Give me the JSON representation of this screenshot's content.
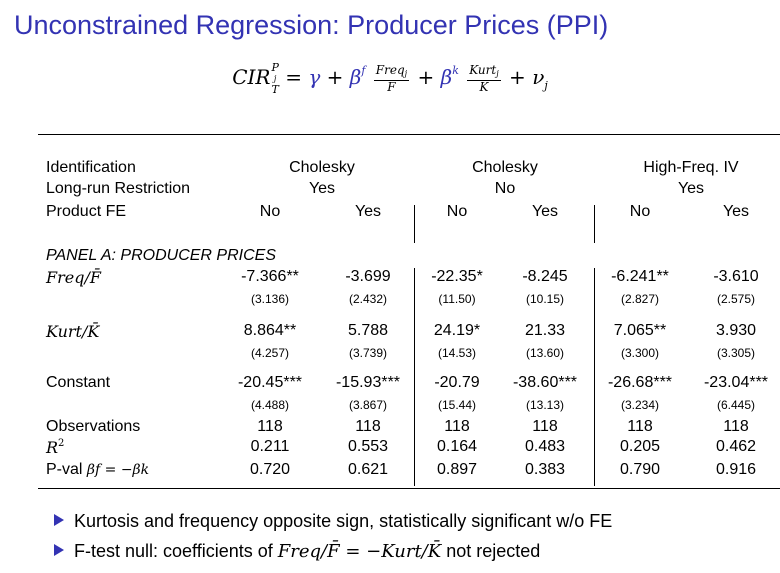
{
  "title": "Unconstrained Regression: Producer Prices (PPI)",
  "formula": {
    "lhs": "CIR",
    "lhs_sup": "P",
    "lhs_sup_sub": "j",
    "lhs_sub": "T",
    "gamma": "γ",
    "beta_f": "β",
    "beta_f_sup": "f",
    "freq_num": "Freq",
    "freq_num_sub": "j",
    "freq_den": "F̄",
    "beta_k": "β",
    "beta_k_sup": "k",
    "kurt_num": "Kurt",
    "kurt_num_sub": "j",
    "kurt_den": "K̄",
    "nu": "ν",
    "nu_sub": "j"
  },
  "header": {
    "identification": {
      "label": "Identification",
      "groups": [
        "Cholesky",
        "Cholesky",
        "High-Freq. IV"
      ]
    },
    "long_run": {
      "label": "Long-run Restriction",
      "groups": [
        "Yes",
        "No",
        "Yes"
      ]
    },
    "product_fe": {
      "label": "Product FE",
      "cols": [
        "No",
        "Yes",
        "No",
        "Yes",
        "No",
        "Yes"
      ]
    }
  },
  "panel_label": "PANEL A: PRODUCER PRICES",
  "rows": {
    "freq": {
      "label": "Freq/F̄",
      "coef": [
        "-7.366**",
        "-3.699",
        "-22.35*",
        "-8.245",
        "-6.241**",
        "-3.610"
      ],
      "se": [
        "(3.136)",
        "(2.432)",
        "(11.50)",
        "(10.15)",
        "(2.827)",
        "(2.575)"
      ]
    },
    "kurt": {
      "label": "Kurt/K̄",
      "coef": [
        "8.864**",
        "5.788",
        "24.19*",
        "21.33",
        "7.065**",
        "3.930"
      ],
      "se": [
        "(4.257)",
        "(3.739)",
        "(14.53)",
        "(13.60)",
        "(3.300)",
        "(3.305)"
      ]
    },
    "constant": {
      "label": "Constant",
      "coef": [
        "-20.45***",
        "-15.93***",
        "-20.79",
        "-38.60***",
        "-26.68***",
        "-23.04***"
      ],
      "se": [
        "(4.488)",
        "(3.867)",
        "(15.44)",
        "(13.13)",
        "(3.234)",
        "(6.445)"
      ]
    },
    "observations": {
      "label": "Observations",
      "vals": [
        "118",
        "118",
        "118",
        "118",
        "118",
        "118"
      ]
    },
    "r2": {
      "label": "R",
      "label_sup": "2",
      "vals": [
        "0.211",
        "0.553",
        "0.164",
        "0.483",
        "0.205",
        "0.462"
      ]
    },
    "pval": {
      "label": "P-val",
      "label_math": "βf = −βk",
      "vals": [
        "0.720",
        "0.621",
        "0.897",
        "0.383",
        "0.790",
        "0.916"
      ]
    }
  },
  "bullets": [
    {
      "text": "Kurtosis and frequency opposite sign, statistically significant w/o FE"
    },
    {
      "text_pre": "F-test null: coefficients of ",
      "math_a": "Freq/F̄",
      "eq": " = −",
      "math_b": "Kurt/K̄",
      "text_post": " not rejected"
    }
  ],
  "colors": {
    "title": "#3333b3",
    "bullet": "#3333b3",
    "formula_greek": "#3333b3"
  }
}
